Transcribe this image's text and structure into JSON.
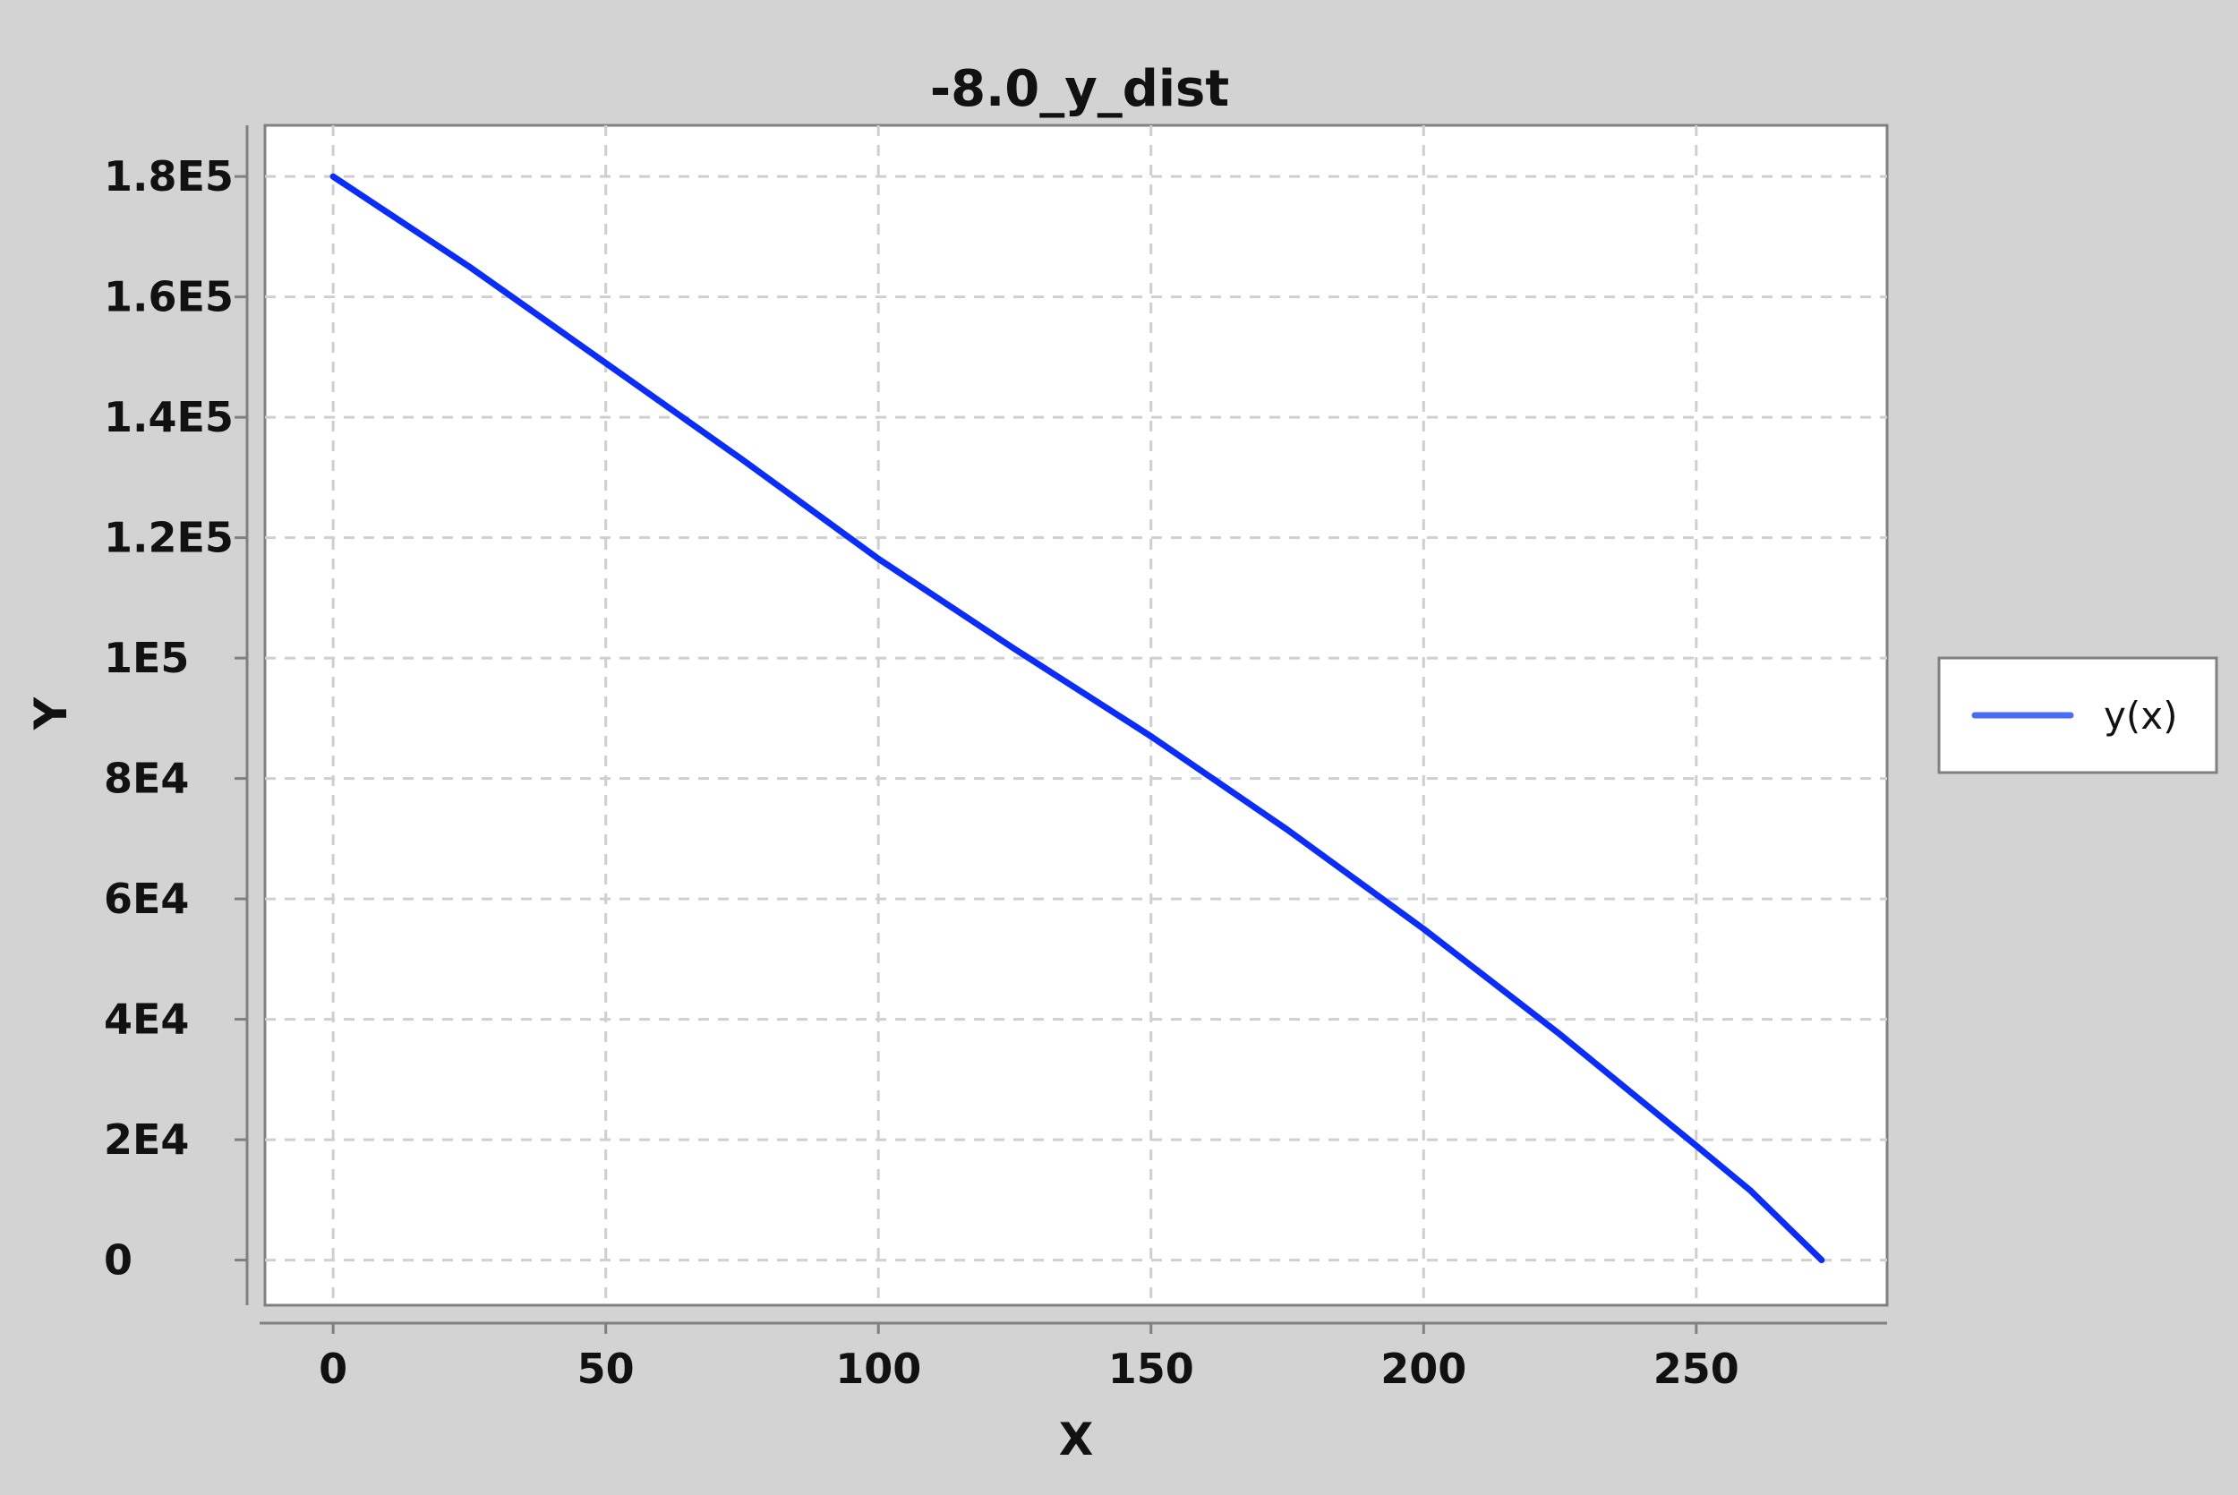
{
  "chart_data": {
    "type": "line",
    "title": "-8.0_y_dist",
    "xlabel": "X",
    "ylabel": "Y",
    "xlim": [
      -12.5,
      285
    ],
    "ylim": [
      -7500,
      188500
    ],
    "x_ticks": [
      0,
      50,
      100,
      150,
      200,
      250
    ],
    "x_tick_labels": [
      "0",
      "50",
      "100",
      "150",
      "200",
      "250"
    ],
    "y_ticks": [
      0,
      20000,
      40000,
      60000,
      80000,
      100000,
      120000,
      140000,
      160000,
      180000
    ],
    "y_tick_labels": [
      "0",
      "2E4",
      "4E4",
      "6E4",
      "8E4",
      "1E5",
      "1.2E5",
      "1.4E5",
      "1.6E5",
      "1.8E5"
    ],
    "grid": true,
    "legend_position": "right",
    "series": [
      {
        "name": "y(x)",
        "color": "#0b2cff",
        "x": [
          0,
          25,
          50,
          75,
          100,
          125,
          150,
          175,
          200,
          225,
          250,
          260,
          273
        ],
        "y": [
          180000,
          165000,
          149000,
          133000,
          116500,
          101500,
          87000,
          71500,
          55000,
          37500,
          19000,
          11500,
          0
        ]
      }
    ]
  }
}
